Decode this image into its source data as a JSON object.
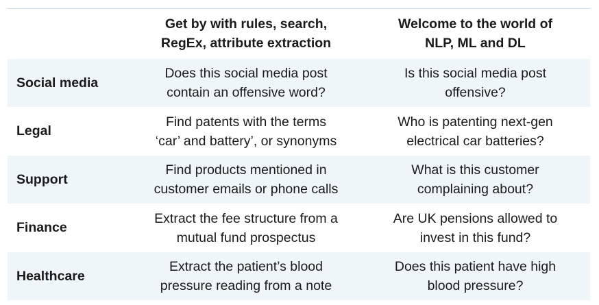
{
  "header": {
    "corner": "",
    "col1_line1": "Get by with rules, search,",
    "col1_line2": "RegEx, attribute extraction",
    "col2_line1": "Welcome to the world of",
    "col2_line2": "NLP, ML and DL"
  },
  "rows": [
    {
      "label": "Social media",
      "rules_line1": "Does this social media post",
      "rules_line2": "contain an offensive word?",
      "ml_line1": "Is this social media post",
      "ml_line2": "offensive?"
    },
    {
      "label": "Legal",
      "rules_line1": "Find patents with the terms",
      "rules_line2": "‘car’ and battery’, or synonyms",
      "ml_line1": "Who is patenting next-gen",
      "ml_line2": "electrical car batteries?"
    },
    {
      "label": "Support",
      "rules_line1": "Find products mentioned in",
      "rules_line2": "customer emails or phone calls",
      "ml_line1": "What is this customer",
      "ml_line2": "complaining about?"
    },
    {
      "label": "Finance",
      "rules_line1": "Extract the fee structure from a",
      "rules_line2": "mutual fund prospectus",
      "ml_line1": "Are UK pensions allowed to",
      "ml_line2": "invest in this fund?"
    },
    {
      "label": "Healthcare",
      "rules_line1": "Extract the patient’s blood",
      "rules_line2": "pressure reading from a note",
      "ml_line1": "Does this patient have high",
      "ml_line2": "blood pressure?"
    }
  ],
  "colors": {
    "shaded_row": "#eef6fa",
    "rule": "#cfe3ee",
    "text": "#1a1a1a"
  }
}
